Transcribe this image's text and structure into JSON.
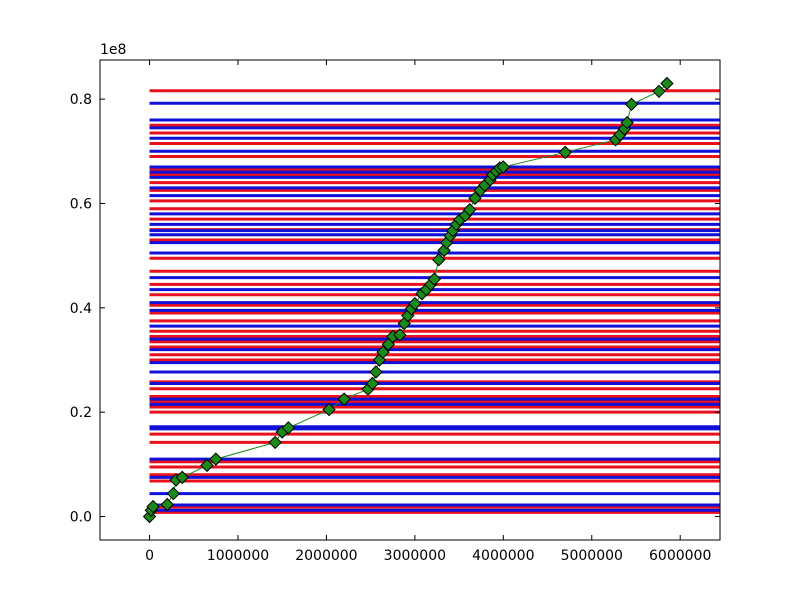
{
  "chart_data": {
    "type": "line",
    "title": "",
    "xlabel": "",
    "ylabel": "",
    "y_offset_label": "1e8",
    "xlim": [
      -560000,
      6450000
    ],
    "ylim": [
      -4500000,
      87500000
    ],
    "x_ticks": [
      0,
      1000000,
      2000000,
      3000000,
      4000000,
      5000000,
      6000000
    ],
    "x_tick_labels": [
      "0",
      "1000000",
      "2000000",
      "3000000",
      "4000000",
      "5000000",
      "6000000"
    ],
    "y_ticks": [
      0,
      20000000,
      40000000,
      60000000,
      80000000
    ],
    "y_tick_labels": [
      "0.0",
      "0.2",
      "0.4",
      "0.6",
      "0.8"
    ],
    "grid": false,
    "hlines": {
      "x_start": 0,
      "x_end": 6450000,
      "colors": {
        "red": "#e8101c",
        "blue": "#1010d8"
      },
      "red_y": [
        800000,
        1800000,
        6800000,
        8000000,
        9500000,
        10500000,
        14200000,
        15800000,
        20000000,
        21000000,
        22000000,
        23000000,
        24500000,
        25800000,
        30000000,
        31000000,
        32500000,
        33500000,
        34500000,
        35500000,
        37500000,
        39000000,
        40500000,
        42500000,
        44500000,
        47000000,
        49500000,
        53000000,
        55000000,
        57000000,
        59000000,
        60500000,
        62500000,
        64000000,
        65500000,
        66500000,
        69000000,
        71500000,
        73500000,
        75000000,
        81600000
      ],
      "blue_y": [
        1200000,
        2200000,
        4400000,
        7500000,
        11000000,
        16800000,
        17200000,
        21500000,
        22500000,
        25500000,
        27700000,
        29500000,
        32000000,
        34000000,
        36500000,
        39500000,
        41000000,
        43500000,
        45800000,
        50500000,
        52500000,
        54000000,
        54800000,
        56000000,
        58000000,
        61500000,
        63000000,
        65000000,
        66000000,
        67000000,
        70000000,
        72500000,
        74500000,
        76000000,
        79200000
      ]
    },
    "series": [
      {
        "color": "#1a8a1a",
        "marker": "diamond",
        "x": [
          0,
          20000,
          40000,
          200000,
          270000,
          300000,
          370000,
          650000,
          750000,
          1420000,
          1500000,
          1570000,
          2030000,
          2200000,
          2470000,
          2520000,
          2560000,
          2600000,
          2640000,
          2700000,
          2750000,
          2830000,
          2880000,
          2920000,
          2960000,
          3000000,
          3080000,
          3130000,
          3180000,
          3220000,
          3270000,
          3330000,
          3360000,
          3400000,
          3430000,
          3470000,
          3510000,
          3570000,
          3620000,
          3680000,
          3740000,
          3790000,
          3850000,
          3880000,
          3920000,
          3960000,
          4000000,
          4700000,
          5270000,
          5320000,
          5370000,
          5400000,
          5450000,
          5760000,
          5850000
        ],
        "y": [
          0,
          1200000,
          1900000,
          2300000,
          4400000,
          7000000,
          7500000,
          9800000,
          11000000,
          14200000,
          16200000,
          17000000,
          20500000,
          22500000,
          24400000,
          25500000,
          27700000,
          30000000,
          31500000,
          33000000,
          34500000,
          34800000,
          37000000,
          38500000,
          39800000,
          40800000,
          42700000,
          43500000,
          44500000,
          45500000,
          49200000,
          51000000,
          52500000,
          53800000,
          54800000,
          56000000,
          56900000,
          57700000,
          58800000,
          61000000,
          62500000,
          63500000,
          64500000,
          65500000,
          66200000,
          66800000,
          67000000,
          69800000,
          72200000,
          73200000,
          74300000,
          75500000,
          79000000,
          81500000,
          83000000
        ]
      }
    ]
  }
}
